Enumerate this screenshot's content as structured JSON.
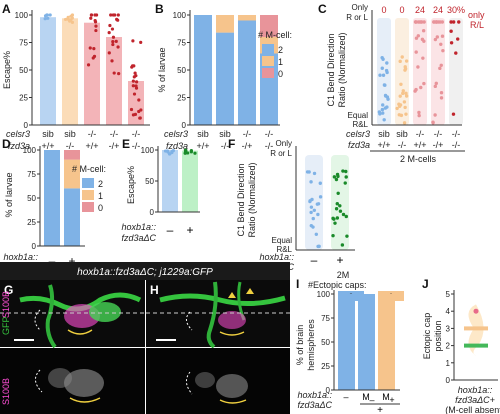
{
  "colors": {
    "sib": "#e9e9e9",
    "blue": "#7fb2e6",
    "blue_light": "#b8d4f2",
    "orange": "#f6c48c",
    "orange_light": "#fbdcb8",
    "red": "#e8949a",
    "red_dark": "#c0242c",
    "green": "#7dd68c",
    "green_dark": "#1a8a2a",
    "pink": "#f0a0a8"
  },
  "panels": {
    "A": {
      "letter": "A",
      "ylabel": "Escape%",
      "yticks": [
        "0",
        "25",
        "50",
        "75",
        "100"
      ]
    },
    "B": {
      "letter": "B",
      "ylabel": "% of larvae",
      "yticks": [
        "0",
        "25",
        "50",
        "75",
        "100"
      ],
      "legend_title": "# M-cell:",
      "legend": [
        "2",
        "1",
        "0"
      ]
    },
    "C": {
      "letter": "C",
      "ylabel1": "C1 Bend Direction",
      "ylabel2": "Ratio (Normalized)",
      "ytop": "Only",
      "ytop2": "R or L",
      "ybot": "Equal",
      "ybot2": "R&L",
      "counts": [
        "0",
        "0",
        "24",
        "24",
        "30%"
      ],
      "only_rl": "only",
      "only_rl2": "R/L",
      "footer": "2 M-cells"
    },
    "D": {
      "letter": "D",
      "ylabel": "% of larvae",
      "yticks": [
        "0",
        "25",
        "50",
        "75",
        "100"
      ],
      "legend_title": "# M-cell:",
      "legend": [
        "2",
        "1",
        "0"
      ]
    },
    "E": {
      "letter": "E",
      "ylabel": "Escape%",
      "yticks": [
        "0",
        "50",
        "100"
      ]
    },
    "F": {
      "letter": "F",
      "ylabel1": "C1 Bend Direction",
      "ylabel2": "Ratio (Normalized)",
      "ytop": "Only",
      "ytop2": "R or L",
      "ybot": "Equal",
      "ybot2": "R&L",
      "footer": "2M"
    },
    "G": {
      "letter": "G",
      "ch1": "GFP",
      "ch2": "S100B",
      "ch3": "S100B"
    },
    "H": {
      "letter": "H"
    },
    "I": {
      "letter": "I",
      "ylabel1": "% of brain",
      "ylabel2": "hemispheres",
      "yticks": [
        "0",
        "25",
        "50",
        "75",
        "100"
      ],
      "legend_title": "#Ectopic caps:",
      "legend": [
        "0",
        "1"
      ],
      "xlabels": [
        "–",
        "M",
        "M"
      ],
      "xsub": [
        "",
        "–",
        "+"
      ],
      "xplus": "+"
    },
    "J": {
      "letter": "J",
      "ylabel": "Ectopic cap",
      "ylabel2": "position",
      "yticks": [
        "0",
        "1",
        "2",
        "3",
        "4",
        "5"
      ],
      "foot1": "hoxb1a::",
      "foot2": "fzd3aΔC+",
      "foot3": "(M-cell absent)"
    }
  },
  "genotypes": {
    "celsr3": "celsr3",
    "fzd3a": "fzd3a",
    "hoxb1a": "hoxb1a::",
    "fzd3a_dc": "fzd3aΔC",
    "A_celsr3": [
      "sib",
      "sib",
      "-/-",
      "-/-",
      "-/-"
    ],
    "A_fzd3a": [
      "+/+",
      "-/-",
      "+/+",
      "-/+",
      "-/-"
    ],
    "B_celsr3": [
      "sib",
      "sib",
      "-/-",
      "-/-"
    ],
    "B_fzd3a": [
      "+/+",
      "-/-",
      "-/+",
      "-/-"
    ],
    "C_celsr3": [
      "sib",
      "sib",
      "-/-",
      "-/-",
      "-/-"
    ],
    "C_fzd3a": [
      "+/+",
      "-/-",
      "+/+",
      "-/+",
      "-/-"
    ],
    "DE_x": [
      "–",
      "+"
    ]
  },
  "micro_title": "hoxb1a::fzd3aΔC; j1229a:GFP",
  "chart_data": [
    {
      "panel": "A",
      "type": "bar",
      "categories": [
        "sib +/+",
        "sib -/-",
        "-/- +/+",
        "-/- -/+",
        "-/- -/-"
      ],
      "values": [
        98,
        97,
        93,
        80,
        40
      ],
      "ylim": [
        0,
        100
      ]
    },
    {
      "panel": "B",
      "type": "bar",
      "stacked": true,
      "categories": [
        "sib +/+",
        "sib -/-",
        "-/- -/+",
        "-/- -/-"
      ],
      "series": [
        {
          "name": "2",
          "values": [
            100,
            84,
            95,
            65
          ]
        },
        {
          "name": "1",
          "values": [
            0,
            16,
            5,
            15
          ]
        },
        {
          "name": "0",
          "values": [
            0,
            0,
            0,
            20
          ]
        }
      ],
      "ylim": [
        0,
        100
      ]
    },
    {
      "panel": "D",
      "type": "bar",
      "stacked": true,
      "categories": [
        "–",
        "+"
      ],
      "series": [
        {
          "name": "2",
          "values": [
            100,
            60
          ]
        },
        {
          "name": "1",
          "values": [
            0,
            30
          ]
        },
        {
          "name": "0",
          "values": [
            0,
            10
          ]
        }
      ],
      "ylim": [
        0,
        100
      ]
    },
    {
      "panel": "E",
      "type": "bar",
      "categories": [
        "–",
        "+"
      ],
      "values": [
        100,
        99
      ],
      "ylim": [
        0,
        100
      ]
    },
    {
      "panel": "I",
      "type": "bar",
      "stacked": true,
      "categories": [
        "–",
        "M –",
        "M +"
      ],
      "series": [
        {
          "name": "0",
          "values": [
            100,
            100,
            0
          ]
        },
        {
          "name": "1",
          "values": [
            0,
            0,
            100
          ]
        }
      ],
      "ylim": [
        0,
        100
      ]
    }
  ]
}
